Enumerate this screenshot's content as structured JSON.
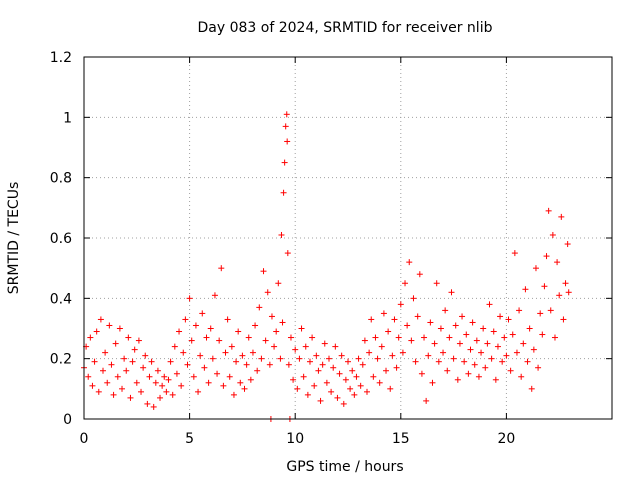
{
  "chart_data": {
    "type": "scatter",
    "title": "Day 083 of 2024, SRMTID for receiver nlib",
    "xlabel": "GPS time / hours",
    "ylabel": "SRMTID / TECUs",
    "xlim": [
      0,
      25
    ],
    "ylim": [
      0,
      1.2
    ],
    "xticks": [
      0,
      5,
      10,
      15,
      20
    ],
    "xtick_labels": [
      "0",
      "5",
      "10",
      "15",
      "20"
    ],
    "yticks": [
      0,
      0.2,
      0.4,
      0.6,
      0.8,
      1.0,
      1.2
    ],
    "ytick_labels": [
      "0",
      "0.2",
      "0.4",
      "0.6",
      "0.8",
      "1",
      "1.2"
    ],
    "grid": true,
    "marker": "+",
    "series": [
      {
        "name": "SRMTID",
        "color": "#ff0000",
        "points": [
          [
            0.0,
            0.17
          ],
          [
            0.1,
            0.24
          ],
          [
            0.2,
            0.14
          ],
          [
            0.3,
            0.27
          ],
          [
            0.4,
            0.11
          ],
          [
            0.5,
            0.19
          ],
          [
            0.6,
            0.29
          ],
          [
            0.7,
            0.09
          ],
          [
            0.8,
            0.33
          ],
          [
            0.9,
            0.16
          ],
          [
            1.0,
            0.22
          ],
          [
            1.1,
            0.12
          ],
          [
            1.2,
            0.31
          ],
          [
            1.3,
            0.18
          ],
          [
            1.4,
            0.08
          ],
          [
            1.5,
            0.25
          ],
          [
            1.6,
            0.14
          ],
          [
            1.7,
            0.3
          ],
          [
            1.8,
            0.1
          ],
          [
            1.9,
            0.2
          ],
          [
            2.0,
            0.16
          ],
          [
            2.1,
            0.27
          ],
          [
            2.2,
            0.07
          ],
          [
            2.3,
            0.19
          ],
          [
            2.4,
            0.23
          ],
          [
            2.5,
            0.12
          ],
          [
            2.6,
            0.26
          ],
          [
            2.7,
            0.09
          ],
          [
            2.8,
            0.17
          ],
          [
            2.9,
            0.21
          ],
          [
            3.0,
            0.05
          ],
          [
            3.1,
            0.14
          ],
          [
            3.2,
            0.19
          ],
          [
            3.3,
            0.04
          ],
          [
            3.4,
            0.12
          ],
          [
            3.5,
            0.16
          ],
          [
            3.6,
            0.07
          ],
          [
            3.7,
            0.11
          ],
          [
            3.8,
            0.14
          ],
          [
            3.9,
            0.09
          ],
          [
            4.0,
            0.13
          ],
          [
            4.1,
            0.19
          ],
          [
            4.2,
            0.08
          ],
          [
            4.3,
            0.24
          ],
          [
            4.4,
            0.15
          ],
          [
            4.5,
            0.29
          ],
          [
            4.6,
            0.11
          ],
          [
            4.7,
            0.22
          ],
          [
            4.8,
            0.33
          ],
          [
            4.9,
            0.18
          ],
          [
            5.0,
            0.4
          ],
          [
            5.1,
            0.26
          ],
          [
            5.2,
            0.14
          ],
          [
            5.3,
            0.31
          ],
          [
            5.4,
            0.09
          ],
          [
            5.5,
            0.21
          ],
          [
            5.6,
            0.35
          ],
          [
            5.7,
            0.17
          ],
          [
            5.8,
            0.27
          ],
          [
            5.9,
            0.12
          ],
          [
            6.0,
            0.3
          ],
          [
            6.1,
            0.2
          ],
          [
            6.2,
            0.41
          ],
          [
            6.3,
            0.15
          ],
          [
            6.4,
            0.26
          ],
          [
            6.5,
            0.5
          ],
          [
            6.6,
            0.11
          ],
          [
            6.7,
            0.22
          ],
          [
            6.8,
            0.33
          ],
          [
            6.9,
            0.14
          ],
          [
            7.0,
            0.24
          ],
          [
            7.1,
            0.08
          ],
          [
            7.2,
            0.19
          ],
          [
            7.3,
            0.29
          ],
          [
            7.4,
            0.12
          ],
          [
            7.5,
            0.21
          ],
          [
            7.6,
            0.1
          ],
          [
            7.7,
            0.18
          ],
          [
            7.8,
            0.27
          ],
          [
            7.9,
            0.13
          ],
          [
            8.0,
            0.22
          ],
          [
            8.1,
            0.31
          ],
          [
            8.2,
            0.16
          ],
          [
            8.3,
            0.37
          ],
          [
            8.4,
            0.2
          ],
          [
            8.5,
            0.49
          ],
          [
            8.6,
            0.26
          ],
          [
            8.7,
            0.42
          ],
          [
            8.8,
            0.18
          ],
          [
            8.85,
            0.0
          ],
          [
            8.9,
            0.34
          ],
          [
            9.0,
            0.24
          ],
          [
            9.1,
            0.29
          ],
          [
            9.2,
            0.45
          ],
          [
            9.3,
            0.2
          ],
          [
            9.35,
            0.61
          ],
          [
            9.4,
            0.32
          ],
          [
            9.45,
            0.75
          ],
          [
            9.5,
            0.85
          ],
          [
            9.55,
            0.97
          ],
          [
            9.6,
            1.01
          ],
          [
            9.62,
            0.92
          ],
          [
            9.65,
            0.55
          ],
          [
            9.7,
            0.18
          ],
          [
            9.75,
            0.0
          ],
          [
            9.8,
            0.27
          ],
          [
            9.9,
            0.13
          ],
          [
            10.0,
            0.23
          ],
          [
            10.1,
            0.1
          ],
          [
            10.2,
            0.2
          ],
          [
            10.3,
            0.3
          ],
          [
            10.4,
            0.14
          ],
          [
            10.5,
            0.24
          ],
          [
            10.6,
            0.08
          ],
          [
            10.7,
            0.19
          ],
          [
            10.8,
            0.27
          ],
          [
            10.9,
            0.11
          ],
          [
            11.0,
            0.21
          ],
          [
            11.1,
            0.16
          ],
          [
            11.2,
            0.06
          ],
          [
            11.3,
            0.18
          ],
          [
            11.4,
            0.25
          ],
          [
            11.5,
            0.12
          ],
          [
            11.6,
            0.2
          ],
          [
            11.7,
            0.09
          ],
          [
            11.8,
            0.17
          ],
          [
            11.9,
            0.24
          ],
          [
            12.0,
            0.07
          ],
          [
            12.1,
            0.15
          ],
          [
            12.2,
            0.21
          ],
          [
            12.3,
            0.05
          ],
          [
            12.4,
            0.13
          ],
          [
            12.5,
            0.19
          ],
          [
            12.6,
            0.1
          ],
          [
            12.7,
            0.16
          ],
          [
            12.8,
            0.08
          ],
          [
            12.9,
            0.14
          ],
          [
            13.0,
            0.2
          ],
          [
            13.1,
            0.11
          ],
          [
            13.2,
            0.18
          ],
          [
            13.3,
            0.26
          ],
          [
            13.4,
            0.09
          ],
          [
            13.5,
            0.22
          ],
          [
            13.6,
            0.33
          ],
          [
            13.7,
            0.14
          ],
          [
            13.8,
            0.27
          ],
          [
            13.9,
            0.2
          ],
          [
            14.0,
            0.12
          ],
          [
            14.1,
            0.24
          ],
          [
            14.2,
            0.35
          ],
          [
            14.3,
            0.16
          ],
          [
            14.4,
            0.29
          ],
          [
            14.5,
            0.1
          ],
          [
            14.6,
            0.21
          ],
          [
            14.7,
            0.33
          ],
          [
            14.8,
            0.17
          ],
          [
            14.9,
            0.27
          ],
          [
            15.0,
            0.38
          ],
          [
            15.1,
            0.22
          ],
          [
            15.2,
            0.45
          ],
          [
            15.3,
            0.31
          ],
          [
            15.4,
            0.52
          ],
          [
            15.5,
            0.26
          ],
          [
            15.6,
            0.4
          ],
          [
            15.7,
            0.19
          ],
          [
            15.8,
            0.34
          ],
          [
            15.9,
            0.48
          ],
          [
            16.0,
            0.15
          ],
          [
            16.1,
            0.27
          ],
          [
            16.2,
            0.06
          ],
          [
            16.3,
            0.21
          ],
          [
            16.4,
            0.32
          ],
          [
            16.5,
            0.12
          ],
          [
            16.6,
            0.25
          ],
          [
            16.7,
            0.45
          ],
          [
            16.8,
            0.19
          ],
          [
            16.9,
            0.3
          ],
          [
            17.0,
            0.22
          ],
          [
            17.1,
            0.36
          ],
          [
            17.2,
            0.16
          ],
          [
            17.3,
            0.27
          ],
          [
            17.4,
            0.42
          ],
          [
            17.5,
            0.2
          ],
          [
            17.6,
            0.31
          ],
          [
            17.7,
            0.13
          ],
          [
            17.8,
            0.25
          ],
          [
            17.9,
            0.34
          ],
          [
            18.0,
            0.19
          ],
          [
            18.1,
            0.28
          ],
          [
            18.2,
            0.15
          ],
          [
            18.3,
            0.23
          ],
          [
            18.4,
            0.32
          ],
          [
            18.5,
            0.18
          ],
          [
            18.6,
            0.26
          ],
          [
            18.7,
            0.14
          ],
          [
            18.8,
            0.22
          ],
          [
            18.9,
            0.3
          ],
          [
            19.0,
            0.17
          ],
          [
            19.1,
            0.25
          ],
          [
            19.2,
            0.38
          ],
          [
            19.3,
            0.2
          ],
          [
            19.4,
            0.29
          ],
          [
            19.5,
            0.13
          ],
          [
            19.6,
            0.24
          ],
          [
            19.7,
            0.34
          ],
          [
            19.8,
            0.19
          ],
          [
            19.9,
            0.27
          ],
          [
            20.0,
            0.21
          ],
          [
            20.1,
            0.33
          ],
          [
            20.2,
            0.16
          ],
          [
            20.3,
            0.28
          ],
          [
            20.4,
            0.55
          ],
          [
            20.5,
            0.22
          ],
          [
            20.6,
            0.36
          ],
          [
            20.7,
            0.14
          ],
          [
            20.8,
            0.25
          ],
          [
            20.9,
            0.43
          ],
          [
            21.0,
            0.19
          ],
          [
            21.1,
            0.3
          ],
          [
            21.2,
            0.1
          ],
          [
            21.3,
            0.23
          ],
          [
            21.4,
            0.5
          ],
          [
            21.5,
            0.17
          ],
          [
            21.6,
            0.35
          ],
          [
            21.7,
            0.28
          ],
          [
            21.8,
            0.44
          ],
          [
            21.9,
            0.54
          ],
          [
            22.0,
            0.69
          ],
          [
            22.1,
            0.36
          ],
          [
            22.2,
            0.61
          ],
          [
            22.3,
            0.27
          ],
          [
            22.4,
            0.52
          ],
          [
            22.5,
            0.41
          ],
          [
            22.6,
            0.67
          ],
          [
            22.7,
            0.33
          ],
          [
            22.8,
            0.45
          ],
          [
            22.9,
            0.58
          ],
          [
            22.95,
            0.42
          ]
        ]
      }
    ]
  }
}
